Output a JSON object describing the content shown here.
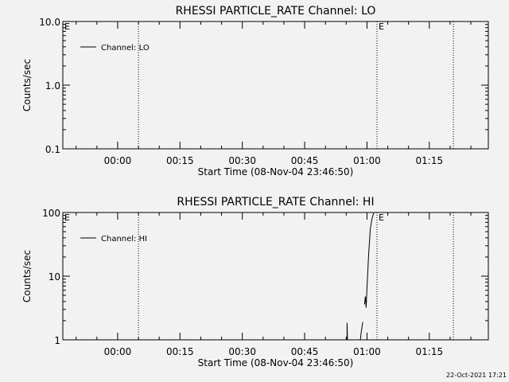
{
  "chart_data": [
    {
      "type": "line",
      "title": "RHESSI PARTICLE_RATE Channel: LO",
      "xlabel": "Start Time (08-Nov-04 23:46:50)",
      "ylabel": "Counts/sec",
      "y_scale": "log",
      "ylim": [
        0.1,
        10.0
      ],
      "y_ticks": [
        "0.1",
        "1.0",
        "10.0"
      ],
      "x_tick_labels": [
        "00:00",
        "00:15",
        "00:30",
        "00:45",
        "01:00",
        "01:15"
      ],
      "xlim_minutes_from_midnight": [
        -13.2,
        89.2
      ],
      "x_tick_minutes": [
        0,
        15,
        30,
        45,
        60,
        75
      ],
      "eclipse_lines_minutes": [
        5.0,
        62.4,
        80.8
      ],
      "eclipse_marker_labels": [
        {
          "text": "E",
          "at_minutes": -13.2
        },
        {
          "text": "E",
          "at_minutes": 62.4
        }
      ],
      "legend": [
        {
          "name": "Channel: LO",
          "color": "#000000"
        }
      ],
      "legend_position": "top-left",
      "grid": false,
      "series": [
        {
          "name": "Channel: LO",
          "x": [],
          "values": []
        }
      ]
    },
    {
      "type": "line",
      "title": "RHESSI PARTICLE_RATE Channel: HI",
      "xlabel": "Start Time (08-Nov-04 23:46:50)",
      "ylabel": "Counts/sec",
      "y_scale": "log",
      "ylim": [
        1,
        100
      ],
      "y_ticks": [
        "1",
        "10",
        "100"
      ],
      "x_tick_labels": [
        "00:00",
        "00:15",
        "00:30",
        "00:45",
        "01:00",
        "01:15"
      ],
      "xlim_minutes_from_midnight": [
        -13.2,
        89.2
      ],
      "x_tick_minutes": [
        0,
        15,
        30,
        45,
        60,
        75
      ],
      "eclipse_lines_minutes": [
        5.0,
        62.4,
        80.8
      ],
      "eclipse_marker_labels": [
        {
          "text": "E",
          "at_minutes": -13.2
        },
        {
          "text": "E",
          "at_minutes": 62.4
        }
      ],
      "legend": [
        {
          "name": "Channel: HI",
          "color": "#000000"
        }
      ],
      "legend_position": "top-left",
      "grid": false,
      "series": [
        {
          "name": "Channel: HI",
          "segments": [
            {
              "x": [
                55.2,
                55.2,
                55.3
              ],
              "values": [
                1.0,
                1.85,
                1.0
              ]
            },
            {
              "x": [
                58.4,
                58.6,
                58.8,
                59.0
              ],
              "values": [
                1.0,
                1.3,
                1.6,
                1.9
              ]
            },
            {
              "x": [
                59.4,
                59.6,
                59.8,
                60.0,
                60.2,
                60.4,
                60.6,
                60.8,
                61.2,
                61.6
              ],
              "values": [
                3.6,
                4.8,
                3.2,
                6.5,
                12.0,
                22.0,
                35.0,
                55.0,
                80.0,
                98.0
              ]
            }
          ]
        }
      ]
    }
  ],
  "footer": {
    "timestamp": "22-Oct-2021 17:21"
  }
}
